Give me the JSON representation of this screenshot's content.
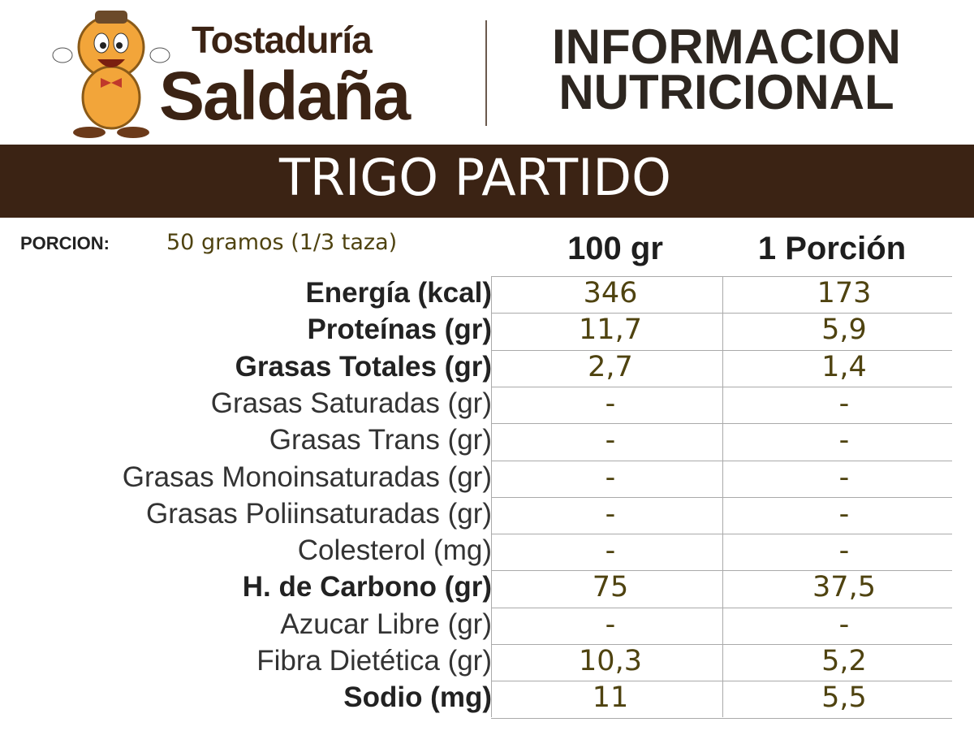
{
  "header": {
    "brand": [
      "Tostaduría",
      "Saldaña"
    ],
    "title": [
      "INFORMACION",
      "NUTRICIONAL"
    ]
  },
  "product": "TRIGO PARTIDO",
  "portion": {
    "label": "PORCION:",
    "value": "50 gramos (1/3 taza)"
  },
  "table": {
    "columns": [
      "100 gr",
      "1 Porción"
    ],
    "rows": [
      {
        "label": "Energía (kcal)",
        "values": [
          "346",
          "173"
        ],
        "bold": true
      },
      {
        "label": "Proteínas (gr)",
        "values": [
          "11,7",
          "5,9"
        ],
        "bold": true
      },
      {
        "label": "Grasas Totales (gr)",
        "values": [
          "2,7",
          "1,4"
        ],
        "bold": true
      },
      {
        "label": "Grasas Saturadas (gr)",
        "values": [
          "-",
          "-"
        ],
        "bold": false
      },
      {
        "label": "Grasas Trans (gr)",
        "values": [
          "-",
          "-"
        ],
        "bold": false
      },
      {
        "label": "Grasas Monoinsaturadas (gr)",
        "values": [
          "-",
          "-"
        ],
        "bold": false
      },
      {
        "label": "Grasas Poliinsaturadas (gr)",
        "values": [
          "-",
          "-"
        ],
        "bold": false
      },
      {
        "label": "Colesterol (mg)",
        "values": [
          "-",
          "-"
        ],
        "bold": false
      },
      {
        "label": "H. de Carbono (gr)",
        "values": [
          "75",
          "37,5"
        ],
        "bold": true
      },
      {
        "label": "Azucar Libre (gr)",
        "values": [
          "-",
          "-"
        ],
        "bold": false
      },
      {
        "label": "Fibra Dietética (gr)",
        "values": [
          "10,3",
          "5,2"
        ],
        "bold": false
      },
      {
        "label": "Sodio (mg)",
        "values": [
          "11",
          "5,5"
        ],
        "bold": true
      }
    ]
  }
}
